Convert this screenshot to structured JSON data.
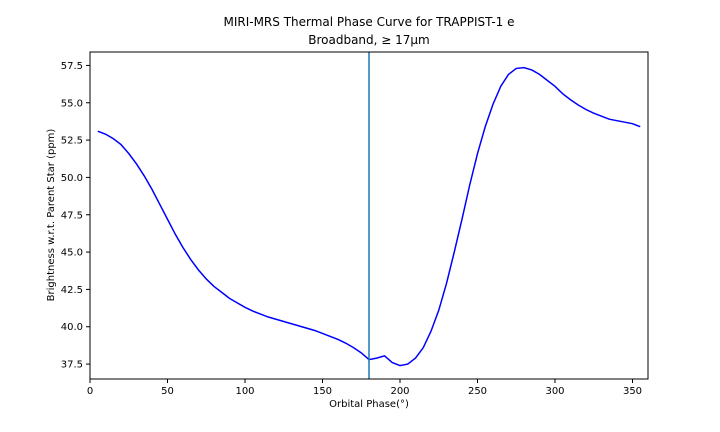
{
  "chart_data": {
    "type": "line",
    "title": "MIRI-MRS Thermal Phase Curve for TRAPPIST-1 e",
    "subtitle": "Broadband, ≥ 17μm",
    "xlabel": "Orbital Phase(°)",
    "ylabel": "Brightness w.r.t. Parent Star (ppm)",
    "xlim": [
      0,
      360
    ],
    "ylim": [
      36.5,
      58.4
    ],
    "xticks": [
      0,
      50,
      100,
      150,
      200,
      250,
      300,
      350
    ],
    "yticks": [
      37.5,
      40.0,
      42.5,
      45.0,
      47.5,
      50.0,
      52.5,
      55.0,
      57.5
    ],
    "grid": false,
    "series": [
      {
        "color": "#0000ff",
        "x": [
          5,
          10,
          15,
          20,
          25,
          30,
          35,
          40,
          45,
          50,
          55,
          60,
          65,
          70,
          75,
          80,
          85,
          90,
          95,
          100,
          105,
          110,
          115,
          120,
          125,
          130,
          135,
          140,
          145,
          150,
          155,
          160,
          165,
          170,
          175,
          180,
          185,
          190,
          195,
          200,
          205,
          210,
          215,
          220,
          225,
          230,
          235,
          240,
          245,
          250,
          255,
          260,
          265,
          270,
          275,
          280,
          285,
          290,
          295,
          300,
          305,
          310,
          315,
          320,
          325,
          330,
          335,
          340,
          345,
          350,
          355
        ],
        "y": [
          53.1,
          52.9,
          52.6,
          52.2,
          51.6,
          50.9,
          50.1,
          49.2,
          48.2,
          47.2,
          46.2,
          45.3,
          44.5,
          43.8,
          43.2,
          42.7,
          42.3,
          41.9,
          41.6,
          41.3,
          41.05,
          40.85,
          40.65,
          40.5,
          40.35,
          40.2,
          40.05,
          39.9,
          39.75,
          39.55,
          39.35,
          39.15,
          38.9,
          38.6,
          38.25,
          37.8,
          37.9,
          38.05,
          37.6,
          37.4,
          37.5,
          37.9,
          38.6,
          39.7,
          41.1,
          42.9,
          45.0,
          47.2,
          49.5,
          51.6,
          53.4,
          54.9,
          56.1,
          56.9,
          57.3,
          57.35,
          57.2,
          56.9,
          56.5,
          56.1,
          55.6,
          55.2,
          54.85,
          54.55,
          54.3,
          54.1,
          53.9,
          53.8,
          53.7,
          53.6,
          53.4
        ]
      }
    ],
    "vline": {
      "x": 180,
      "color": "#1f77b4"
    }
  }
}
